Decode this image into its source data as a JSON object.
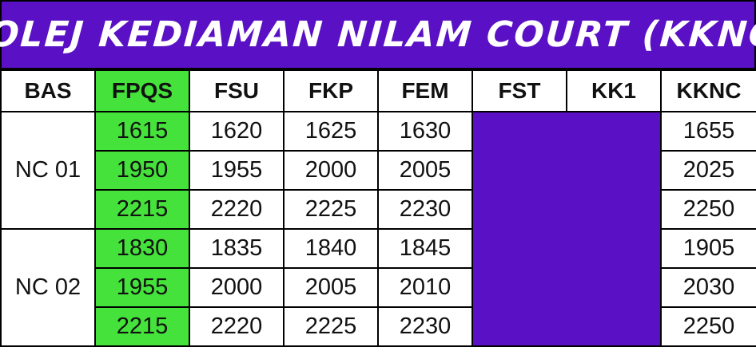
{
  "title": "KOLEJ KEDIAMAN NILAM COURT (KKNC)",
  "colors": {
    "title_bg": "#5a10c4",
    "highlight": "#44e23a",
    "fst_kk1_block": "#5a10c4"
  },
  "table": {
    "headers": [
      "BAS",
      "FPQS",
      "FSU",
      "FKP",
      "FEM",
      "FST",
      "KK1",
      "KKNC"
    ],
    "groups": [
      {
        "bas": "NC 01",
        "rows": [
          {
            "fpqs": "1615",
            "fsu": "1620",
            "fkp": "1625",
            "fem": "1630",
            "kknc": "1655"
          },
          {
            "fpqs": "1950",
            "fsu": "1955",
            "fkp": "2000",
            "fem": "2005",
            "kknc": "2025"
          },
          {
            "fpqs": "2215",
            "fsu": "2220",
            "fkp": "2225",
            "fem": "2230",
            "kknc": "2250"
          }
        ]
      },
      {
        "bas": "NC 02",
        "rows": [
          {
            "fpqs": "1830",
            "fsu": "1835",
            "fkp": "1840",
            "fem": "1845",
            "kknc": "1905"
          },
          {
            "fpqs": "1955",
            "fsu": "2000",
            "fkp": "2005",
            "fem": "2010",
            "kknc": "2030"
          },
          {
            "fpqs": "2215",
            "fsu": "2220",
            "fkp": "2225",
            "fem": "2230",
            "kknc": "2250"
          }
        ]
      }
    ]
  }
}
